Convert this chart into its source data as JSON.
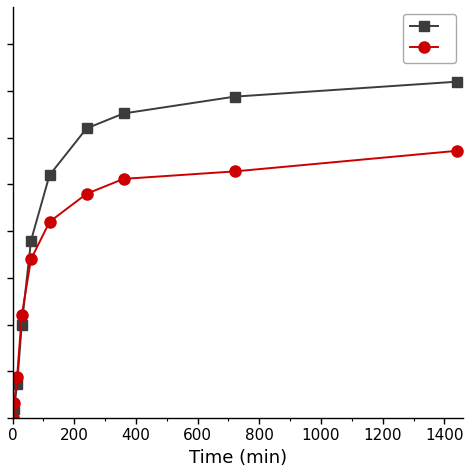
{
  "series": [
    {
      "label": "",
      "x": [
        0,
        5,
        15,
        30,
        60,
        120,
        240,
        360,
        720,
        1440
      ],
      "y": [
        0,
        5,
        18,
        50,
        95,
        130,
        155,
        163,
        172,
        180
      ],
      "color": "#3c3c3c",
      "marker": "s",
      "markersize": 7,
      "linewidth": 1.4
    },
    {
      "label": "",
      "x": [
        0,
        5,
        15,
        30,
        60,
        120,
        240,
        360,
        720,
        1440
      ],
      "y": [
        0,
        8,
        22,
        55,
        85,
        105,
        120,
        128,
        132,
        143
      ],
      "color": "#cc0000",
      "marker": "o",
      "markersize": 8,
      "linewidth": 1.4
    }
  ],
  "xlabel": "Time (min)",
  "xlim": [
    0,
    1460
  ],
  "ylim": [
    0,
    220
  ],
  "xticks": [
    0,
    200,
    400,
    600,
    800,
    1000,
    1200,
    1400
  ],
  "legend_handles": [
    {
      "color": "#3c3c3c",
      "marker": "s",
      "label": ""
    },
    {
      "color": "#cc0000",
      "marker": "o",
      "label": ""
    }
  ],
  "background_color": "#ffffff",
  "figsize": [
    4.74,
    4.74
  ],
  "dpi": 100
}
